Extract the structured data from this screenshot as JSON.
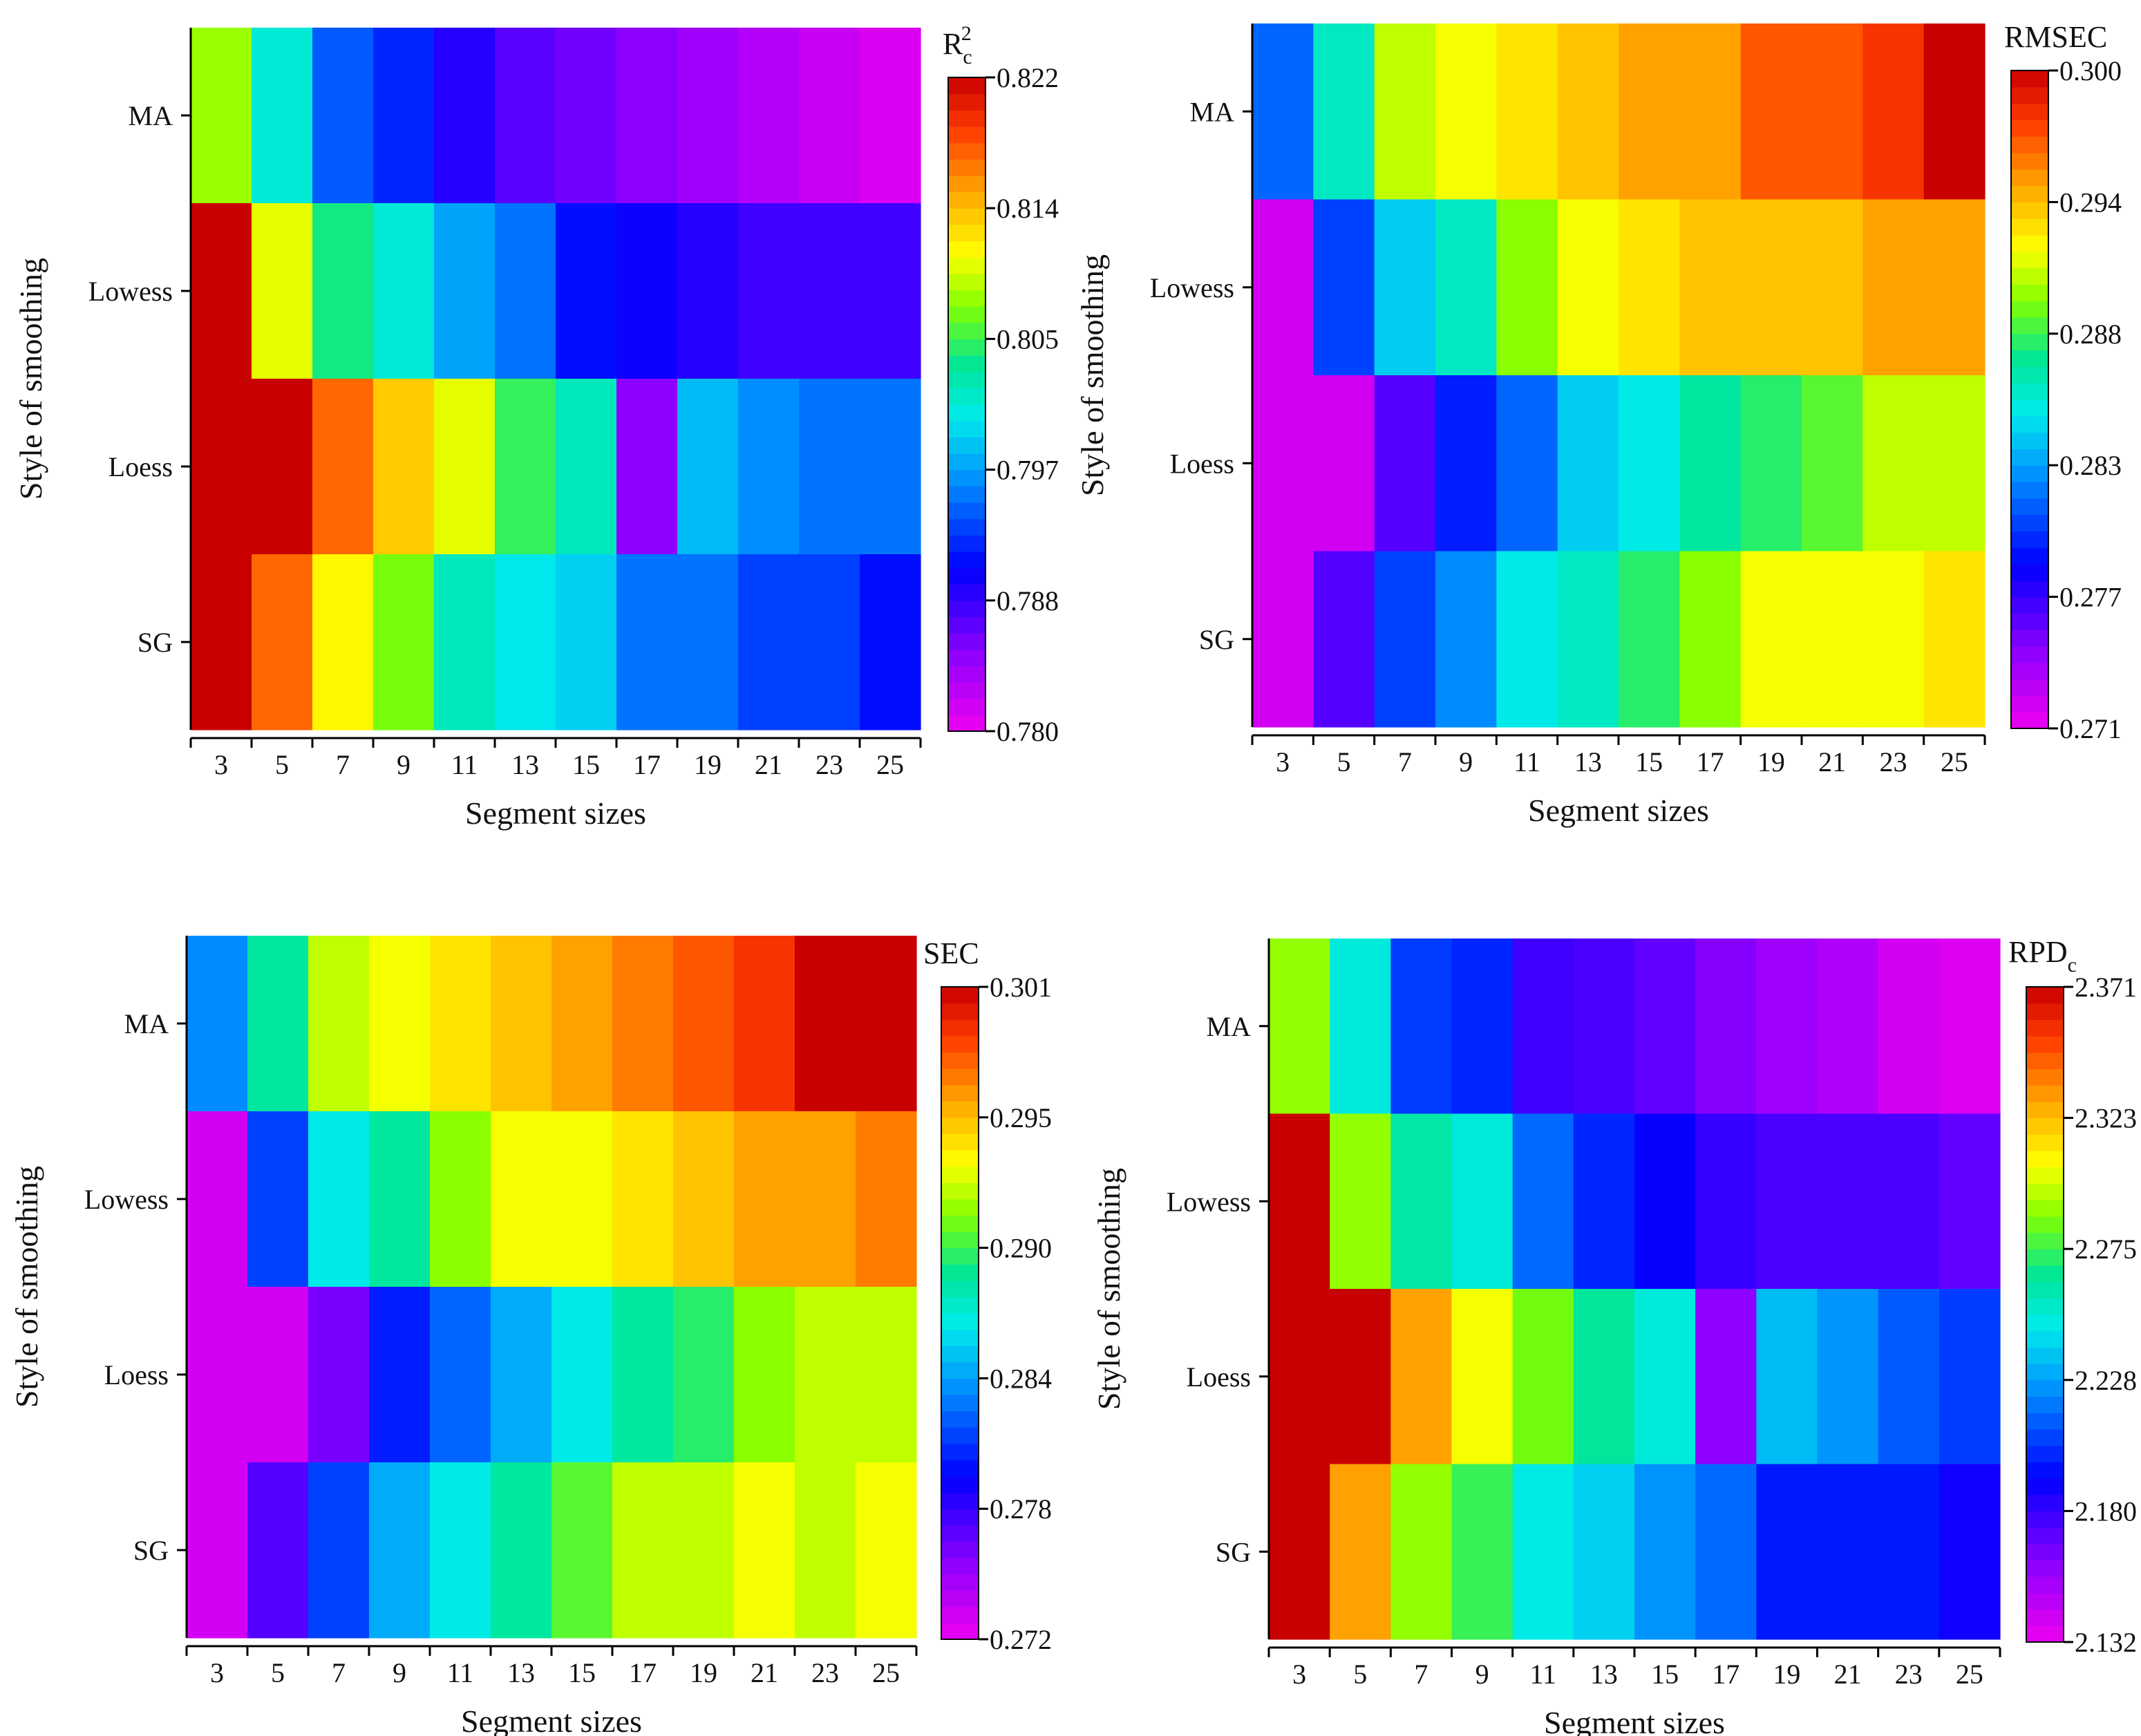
{
  "chart_data": [
    {
      "id": "r2c",
      "type": "heatmap",
      "title": "R",
      "title_sub": "c",
      "title_sup": "2",
      "xlabel": "Segment sizes",
      "ylabel": "Style of smoothing",
      "x_categories": [
        "3",
        "5",
        "7",
        "9",
        "11",
        "13",
        "15",
        "17",
        "19",
        "21",
        "23",
        "25"
      ],
      "y_categories": [
        "MA",
        "Lowess",
        "Loess",
        "SG"
      ],
      "colorbar": {
        "range": [
          0.78,
          0.822
        ],
        "ticks": [
          "0.822",
          "0.814",
          "0.805",
          "0.797",
          "0.788",
          "0.780"
        ]
      },
      "values": [
        [
          0.808,
          0.801,
          0.794,
          0.792,
          0.789,
          0.787,
          0.786,
          0.785,
          0.784,
          0.783,
          0.782,
          0.781
        ],
        [
          0.822,
          0.81,
          0.804,
          0.801,
          0.797,
          0.795,
          0.791,
          0.79,
          0.789,
          0.788,
          0.788,
          0.788
        ],
        [
          0.822,
          0.822,
          0.817,
          0.813,
          0.81,
          0.805,
          0.802,
          0.785,
          0.798,
          0.796,
          0.795,
          0.795
        ],
        [
          0.822,
          0.817,
          0.811,
          0.807,
          0.802,
          0.8,
          0.799,
          0.795,
          0.795,
          0.793,
          0.793,
          0.791
        ]
      ]
    },
    {
      "id": "rmsec",
      "type": "heatmap",
      "title": "RMSEC",
      "xlabel": "Segment sizes",
      "ylabel": "Style of smoothing",
      "x_categories": [
        "3",
        "5",
        "7",
        "9",
        "11",
        "13",
        "15",
        "17",
        "19",
        "21",
        "23",
        "25"
      ],
      "y_categories": [
        "MA",
        "Lowess",
        "Loess",
        "SG"
      ],
      "colorbar": {
        "range": [
          0.271,
          0.3
        ],
        "ticks": [
          "0.300",
          "0.294",
          "0.288",
          "0.283",
          "0.277",
          "0.271"
        ]
      },
      "values": [
        [
          0.281,
          0.286,
          0.291,
          0.292,
          0.293,
          0.294,
          0.295,
          0.295,
          0.297,
          0.297,
          0.298,
          0.3
        ],
        [
          0.272,
          0.28,
          0.284,
          0.286,
          0.29,
          0.292,
          0.293,
          0.294,
          0.294,
          0.294,
          0.295,
          0.295
        ],
        [
          0.272,
          0.272,
          0.276,
          0.279,
          0.281,
          0.284,
          0.285,
          0.287,
          0.288,
          0.289,
          0.291,
          0.291
        ],
        [
          0.272,
          0.276,
          0.28,
          0.282,
          0.285,
          0.286,
          0.288,
          0.29,
          0.292,
          0.292,
          0.292,
          0.293
        ]
      ]
    },
    {
      "id": "sec",
      "type": "heatmap",
      "title": "SEC",
      "xlabel": "Segment sizes",
      "ylabel": "Style of smoothing",
      "x_categories": [
        "3",
        "5",
        "7",
        "9",
        "11",
        "13",
        "15",
        "17",
        "19",
        "21",
        "23",
        "25"
      ],
      "y_categories": [
        "MA",
        "Lowess",
        "Loess",
        "SG"
      ],
      "colorbar": {
        "range": [
          0.272,
          0.301
        ],
        "ticks": [
          "0.301",
          "0.295",
          "0.290",
          "0.284",
          "0.278",
          "0.272"
        ]
      },
      "values": [
        [
          0.283,
          0.288,
          0.292,
          0.293,
          0.294,
          0.295,
          0.296,
          0.297,
          0.298,
          0.299,
          0.301,
          0.301
        ],
        [
          0.273,
          0.281,
          0.286,
          0.288,
          0.291,
          0.293,
          0.293,
          0.294,
          0.295,
          0.296,
          0.296,
          0.297
        ],
        [
          0.273,
          0.273,
          0.276,
          0.28,
          0.282,
          0.284,
          0.286,
          0.288,
          0.289,
          0.291,
          0.292,
          0.292
        ],
        [
          0.273,
          0.277,
          0.281,
          0.284,
          0.286,
          0.288,
          0.29,
          0.292,
          0.292,
          0.293,
          0.292,
          0.293
        ]
      ]
    },
    {
      "id": "rpdc",
      "type": "heatmap",
      "title": "RPD",
      "title_sub": "c",
      "xlabel": "Segment sizes",
      "ylabel": "Style of smoothing",
      "x_categories": [
        "3",
        "5",
        "7",
        "9",
        "11",
        "13",
        "15",
        "17",
        "19",
        "21",
        "23",
        "25"
      ],
      "y_categories": [
        "MA",
        "Lowess",
        "Loess",
        "SG"
      ],
      "colorbar": {
        "range": [
          2.132,
          2.371
        ],
        "ticks": [
          "2.371",
          "2.323",
          "2.275",
          "2.228",
          "2.180",
          "2.132"
        ]
      },
      "values": [
        [
          2.29,
          2.25,
          2.205,
          2.2,
          2.178,
          2.175,
          2.17,
          2.162,
          2.155,
          2.15,
          2.14,
          2.137
        ],
        [
          2.371,
          2.29,
          2.262,
          2.25,
          2.215,
          2.2,
          2.19,
          2.18,
          2.175,
          2.175,
          2.175,
          2.17
        ],
        [
          2.371,
          2.371,
          2.33,
          2.305,
          2.285,
          2.265,
          2.25,
          2.16,
          2.235,
          2.225,
          2.212,
          2.205
        ],
        [
          2.371,
          2.33,
          2.29,
          2.275,
          2.248,
          2.24,
          2.225,
          2.215,
          2.197,
          2.197,
          2.197,
          2.188
        ]
      ]
    }
  ]
}
